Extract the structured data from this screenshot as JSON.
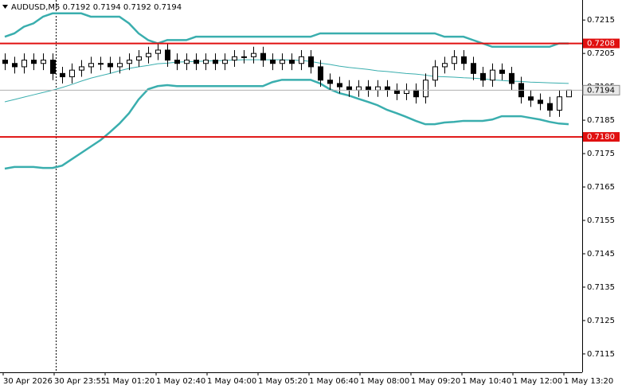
{
  "chart_data": {
    "type": "candlestick",
    "title": "AUDUSD,M5  0.7192 0.7194 0.7192 0.7194",
    "xlabels": [
      "30 Apr 2026",
      "30 Apr 23:55",
      "1 May 01:20",
      "1 May 02:40",
      "1 May 04:00",
      "1 May 05:20",
      "1 May 06:40",
      "1 May 08:00",
      "1 May 09:20",
      "1 May 10:40",
      "1 May 12:00",
      "1 May 13:20"
    ],
    "ylim": [
      0.71095,
      0.7221
    ],
    "yticks": [
      0.7215,
      0.7205,
      0.7195,
      0.7185,
      0.7175,
      0.7165,
      0.7155,
      0.7145,
      0.7135,
      0.7125,
      0.7115
    ],
    "candles": [
      [
        0.7203,
        0.7205,
        0.72,
        0.7202
      ],
      [
        0.7202,
        0.7204,
        0.7199,
        0.7201
      ],
      [
        0.7201,
        0.7205,
        0.7199,
        0.7203
      ],
      [
        0.7203,
        0.7205,
        0.72,
        0.7202
      ],
      [
        0.7202,
        0.7205,
        0.72,
        0.7203
      ],
      [
        0.7203,
        0.7205,
        0.7197,
        0.7199
      ],
      [
        0.7199,
        0.7201,
        0.7196,
        0.7198
      ],
      [
        0.7198,
        0.7202,
        0.7196,
        0.72
      ],
      [
        0.72,
        0.7203,
        0.7198,
        0.7201
      ],
      [
        0.7201,
        0.7204,
        0.7199,
        0.7202
      ],
      [
        0.7202,
        0.7204,
        0.72,
        0.7202
      ],
      [
        0.7202,
        0.7204,
        0.7199,
        0.7201
      ],
      [
        0.7201,
        0.7204,
        0.7199,
        0.7202
      ],
      [
        0.7202,
        0.7205,
        0.72,
        0.7203
      ],
      [
        0.7203,
        0.7206,
        0.7201,
        0.7204
      ],
      [
        0.7204,
        0.7207,
        0.7202,
        0.7205
      ],
      [
        0.7205,
        0.7208,
        0.7203,
        0.7206
      ],
      [
        0.7206,
        0.7208,
        0.7201,
        0.7203
      ],
      [
        0.7203,
        0.7205,
        0.72,
        0.7202
      ],
      [
        0.7202,
        0.7205,
        0.72,
        0.7203
      ],
      [
        0.7203,
        0.7205,
        0.72,
        0.7202
      ],
      [
        0.7202,
        0.7205,
        0.72,
        0.7203
      ],
      [
        0.7203,
        0.7205,
        0.72,
        0.7202
      ],
      [
        0.7202,
        0.7205,
        0.72,
        0.7203
      ],
      [
        0.7203,
        0.7206,
        0.7201,
        0.7204
      ],
      [
        0.7204,
        0.7206,
        0.7202,
        0.7204
      ],
      [
        0.7204,
        0.7207,
        0.7202,
        0.7205
      ],
      [
        0.7205,
        0.7207,
        0.7201,
        0.7203
      ],
      [
        0.7203,
        0.7205,
        0.72,
        0.7202
      ],
      [
        0.7202,
        0.7205,
        0.72,
        0.7203
      ],
      [
        0.7203,
        0.7205,
        0.72,
        0.7202
      ],
      [
        0.7202,
        0.7206,
        0.72,
        0.7204
      ],
      [
        0.7204,
        0.7206,
        0.7199,
        0.7201
      ],
      [
        0.7201,
        0.7203,
        0.7195,
        0.7197
      ],
      [
        0.7197,
        0.7199,
        0.7194,
        0.7196
      ],
      [
        0.7196,
        0.7198,
        0.7193,
        0.7195
      ],
      [
        0.7195,
        0.7197,
        0.7192,
        0.7194
      ],
      [
        0.7194,
        0.7197,
        0.7192,
        0.7195
      ],
      [
        0.7195,
        0.7197,
        0.7192,
        0.7194
      ],
      [
        0.7194,
        0.7197,
        0.7192,
        0.7195
      ],
      [
        0.7195,
        0.7197,
        0.7192,
        0.7194
      ],
      [
        0.7194,
        0.7196,
        0.7191,
        0.7193
      ],
      [
        0.7193,
        0.7196,
        0.7191,
        0.7194
      ],
      [
        0.7194,
        0.7196,
        0.719,
        0.7192
      ],
      [
        0.7192,
        0.7199,
        0.719,
        0.7197
      ],
      [
        0.7197,
        0.7203,
        0.7195,
        0.7201
      ],
      [
        0.7201,
        0.7204,
        0.7199,
        0.7202
      ],
      [
        0.7202,
        0.7206,
        0.72,
        0.7204
      ],
      [
        0.7204,
        0.7206,
        0.72,
        0.7202
      ],
      [
        0.7202,
        0.7204,
        0.7197,
        0.7199
      ],
      [
        0.7199,
        0.7201,
        0.7195,
        0.7197
      ],
      [
        0.7197,
        0.7202,
        0.7195,
        0.72
      ],
      [
        0.72,
        0.7202,
        0.7197,
        0.7199
      ],
      [
        0.7199,
        0.7201,
        0.7194,
        0.7196
      ],
      [
        0.7196,
        0.7198,
        0.719,
        0.7192
      ],
      [
        0.7192,
        0.7194,
        0.7189,
        0.7191
      ],
      [
        0.7191,
        0.7193,
        0.7188,
        0.719
      ],
      [
        0.719,
        0.7192,
        0.7186,
        0.7188
      ],
      [
        0.7188,
        0.7194,
        0.7186,
        0.7192
      ],
      [
        0.7192,
        0.7194,
        0.7192,
        0.7194
      ]
    ],
    "bands_color": "#3aaeae",
    "bands": {
      "upper": [
        0.721,
        0.7211,
        0.7213,
        0.7214,
        0.7216,
        0.7217,
        0.7217,
        0.7217,
        0.7217,
        0.7216,
        0.7216,
        0.7216,
        0.7216,
        0.7214,
        0.7211,
        0.7209,
        0.7208,
        0.7209,
        0.7209,
        0.7209,
        0.721,
        0.721,
        0.721,
        0.721,
        0.721,
        0.721,
        0.721,
        0.721,
        0.721,
        0.721,
        0.721,
        0.721,
        0.721,
        0.7211,
        0.7211,
        0.7211,
        0.7211,
        0.7211,
        0.7211,
        0.7211,
        0.7211,
        0.7211,
        0.7211,
        0.7211,
        0.7211,
        0.7211,
        0.721,
        0.721,
        0.721,
        0.7209,
        0.7208,
        0.7207,
        0.7207,
        0.7207,
        0.7207,
        0.7207,
        0.7207,
        0.7207,
        0.7208,
        0.7208
      ],
      "middle": [
        0.71905,
        0.71912,
        0.71919,
        0.71926,
        0.71933,
        0.7194,
        0.71948,
        0.71957,
        0.71967,
        0.71976,
        0.71983,
        0.7199,
        0.71998,
        0.72005,
        0.7201,
        0.72014,
        0.72019,
        0.72021,
        0.72024,
        0.72025,
        0.72026,
        0.72027,
        0.72028,
        0.72029,
        0.7203,
        0.72031,
        0.72031,
        0.72031,
        0.72031,
        0.72031,
        0.7203,
        0.72029,
        0.72026,
        0.72021,
        0.72017,
        0.72012,
        0.72008,
        0.72005,
        0.72002,
        0.71998,
        0.71996,
        0.71993,
        0.7199,
        0.71988,
        0.71985,
        0.71981,
        0.7198,
        0.71979,
        0.71977,
        0.71976,
        0.71974,
        0.71971,
        0.71969,
        0.71967,
        0.71966,
        0.71964,
        0.71963,
        0.71962,
        0.71961,
        0.7196
      ],
      "lower": [
        0.71705,
        0.7171,
        0.7171,
        0.7171,
        0.71707,
        0.71707,
        0.71714,
        0.71733,
        0.71752,
        0.71771,
        0.7179,
        0.71814,
        0.7184,
        0.71871,
        0.71912,
        0.71943,
        0.71952,
        0.71955,
        0.71952,
        0.71952,
        0.71952,
        0.71952,
        0.71952,
        0.71952,
        0.71952,
        0.71952,
        0.71952,
        0.71952,
        0.71964,
        0.71971,
        0.71971,
        0.71971,
        0.71971,
        0.7196,
        0.71943,
        0.71931,
        0.71924,
        0.71914,
        0.71905,
        0.71895,
        0.71881,
        0.71871,
        0.7186,
        0.71848,
        0.71838,
        0.71838,
        0.71843,
        0.71845,
        0.71848,
        0.71848,
        0.71848,
        0.71852,
        0.71862,
        0.71862,
        0.71862,
        0.71857,
        0.71852,
        0.71845,
        0.7184,
        0.71838
      ]
    },
    "levels": [
      0.7208,
      {
        "value": 0.718,
        "label": "0.7180"
      }
    ],
    "level_color": "#e01010",
    "last_price": 0.7194
  }
}
